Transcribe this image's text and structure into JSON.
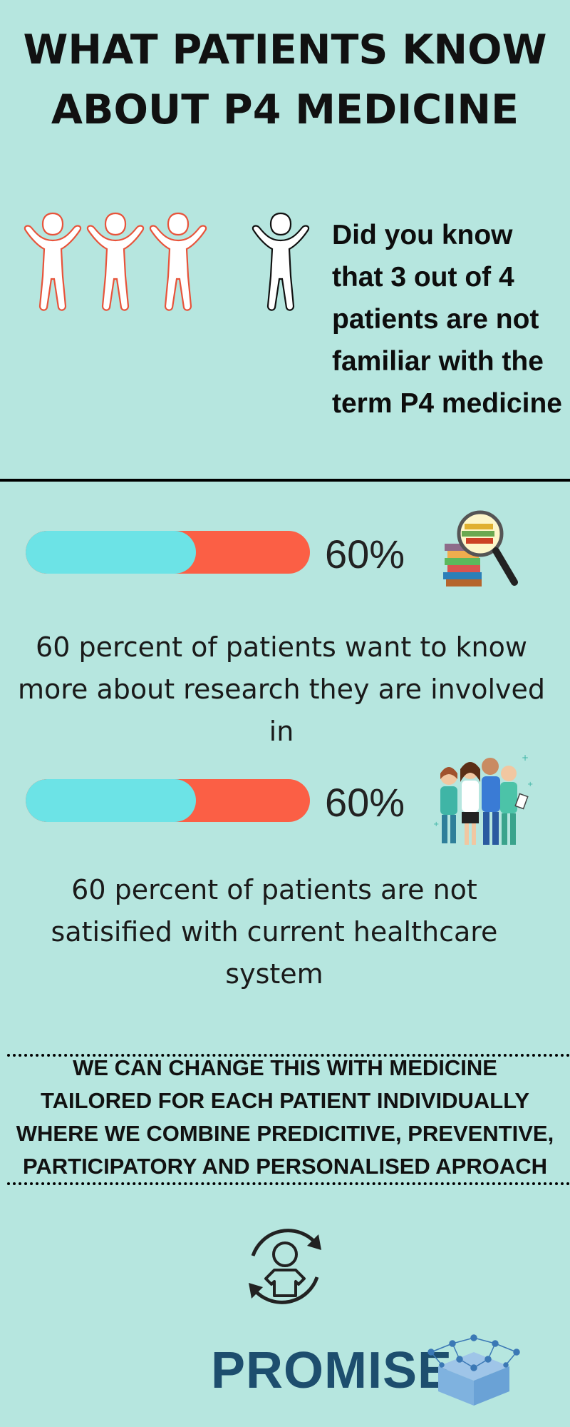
{
  "title": {
    "line1": "WHAT PATIENTS KNOW",
    "line2": "ABOUT P4 MEDICINE"
  },
  "intro": {
    "question": "Did you know that 3 out of 4 patients are not familiar with the term P4 medicine",
    "highlighted_people": 3,
    "total_people": 4
  },
  "stats": [
    {
      "value_label": "60%",
      "fraction": 0.6,
      "text": "60 percent of patients want to know more about research they are involved in",
      "icon": "books-magnifier-icon"
    },
    {
      "value_label": "60%",
      "fraction": 0.6,
      "text": "60 percent of patients are not satisified with current healthcare system",
      "icon": "healthcare-team-icon"
    }
  ],
  "cta": {
    "line1": "WE CAN CHANGE THIS WITH MEDICINE",
    "line2": "TAILORED FOR EACH PATIENT INDIVIDUALLY",
    "line3": "WHERE WE COMBINE PREDICITIVE, PREVENTIVE,",
    "line4": "PARTICIPATORY AND PERSONALISED APROACH"
  },
  "footer": {
    "icon": "patient-cycle-icon",
    "logo_text": "PROMISE",
    "logo_icon": "network-cube-icon"
  },
  "colors": {
    "background": "#b6e6df",
    "bar_fill": "#6ce3e6",
    "bar_remainder": "#fb5f45",
    "accent": "#e8533a",
    "logo": "#1d4e6e"
  }
}
